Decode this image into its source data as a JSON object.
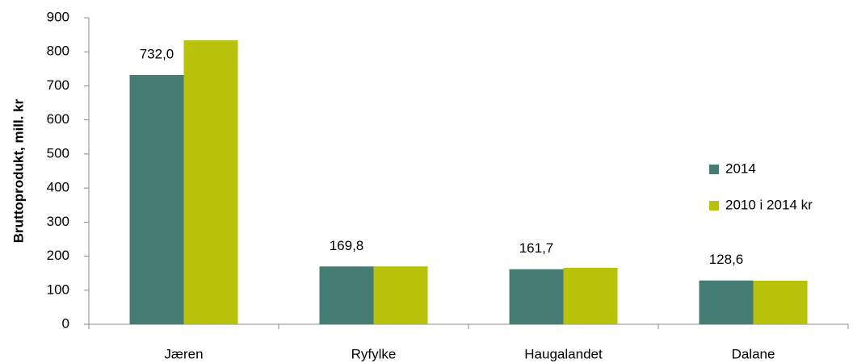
{
  "chart_data": {
    "type": "bar",
    "y_label": "Bruttoprodukt, mill. kr",
    "categories": [
      "Jæren",
      "Ryfylke",
      "Haugalandet",
      "Dalane"
    ],
    "series": [
      {
        "name": "2014",
        "color": "#457d74",
        "values": [
          732.0,
          169.8,
          161.7,
          128.6
        ],
        "value_labels": [
          "732,0",
          "169,8",
          "161,7",
          "128,6"
        ]
      },
      {
        "name": "2010 i 2014 kr",
        "color": "#b8c20a",
        "values": [
          834,
          170,
          166,
          128
        ]
      }
    ],
    "ylim": [
      0,
      900
    ],
    "yticks": [
      0,
      100,
      200,
      300,
      400,
      500,
      600,
      700,
      800,
      900
    ],
    "grid": false,
    "legend": "right"
  }
}
